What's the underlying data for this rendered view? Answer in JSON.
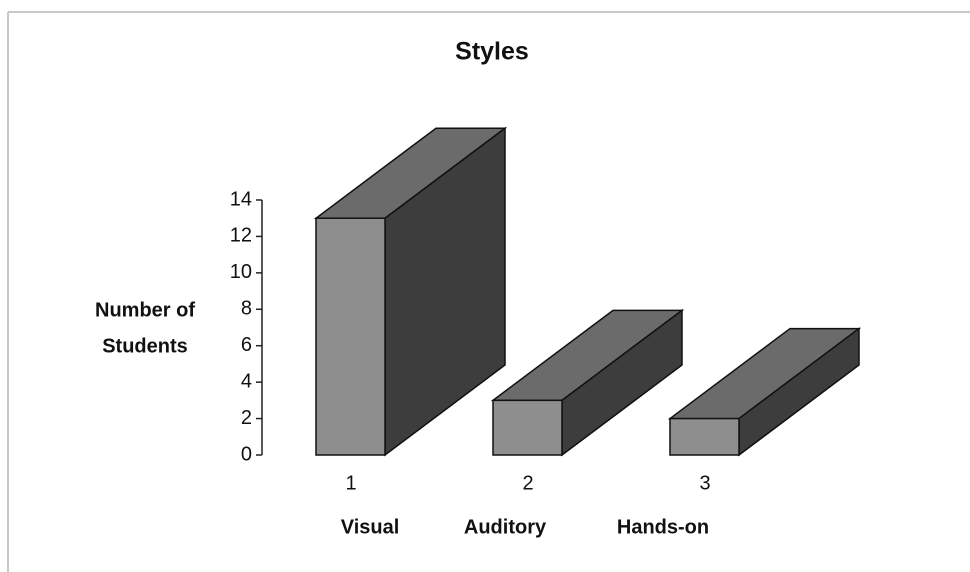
{
  "chart_data": {
    "type": "bar3d",
    "title": "Styles",
    "ylabel": [
      "Number of",
      "Students"
    ],
    "categories": [
      "1",
      "2",
      "3"
    ],
    "group_labels": [
      "Visual",
      "Auditory",
      "Hands-on"
    ],
    "values": [
      13,
      3,
      2
    ],
    "ylim": [
      0,
      14
    ],
    "yticks": [
      0,
      2,
      4,
      6,
      8,
      10,
      12,
      14
    ],
    "colors": {
      "front": "#8e8e8e",
      "top": "#6b6b6b",
      "side": "#3d3d3d"
    }
  }
}
